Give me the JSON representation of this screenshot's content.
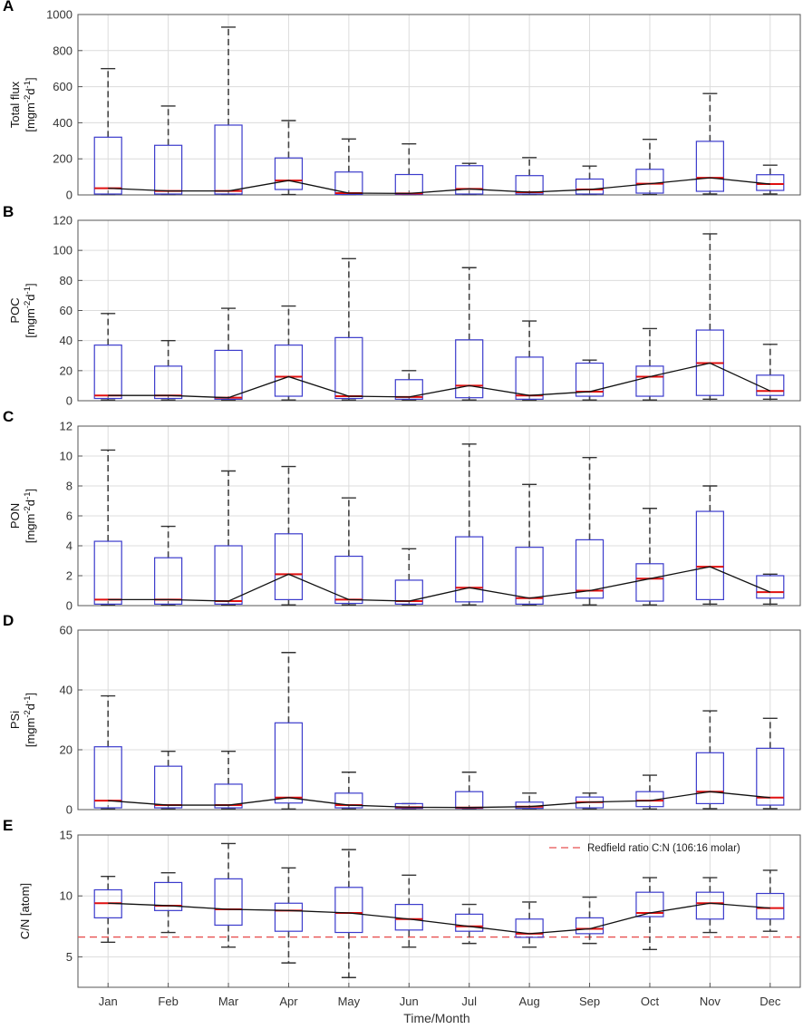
{
  "chart_data": {
    "type": "box",
    "months": [
      "Jan",
      "Feb",
      "Mar",
      "Apr",
      "May",
      "Jun",
      "Jul",
      "Aug",
      "Sep",
      "Oct",
      "Nov",
      "Dec"
    ],
    "xlabel": "Time/Month",
    "panels": [
      {
        "letter": "A",
        "ylabel_main": "Total flux",
        "ylabel_unit": "[mgm",
        "ylabel_sup1": "-2",
        "ylabel_mid": "d",
        "ylabel_sup2": "-1",
        "ylabel_close": "]",
        "ylim": [
          0,
          1000
        ],
        "yticks": [
          0,
          200,
          400,
          600,
          800,
          1000
        ],
        "boxes": [
          {
            "min": 2,
            "q1": 5,
            "median": 37,
            "q3": 320,
            "max": 700
          },
          {
            "min": 2,
            "q1": 5,
            "median": 22,
            "q3": 275,
            "max": 493
          },
          {
            "min": 2,
            "q1": 5,
            "median": 22,
            "q3": 387,
            "max": 930
          },
          {
            "min": 2,
            "q1": 30,
            "median": 80,
            "q3": 205,
            "max": 412
          },
          {
            "min": 2,
            "q1": 3,
            "median": 10,
            "q3": 127,
            "max": 310
          },
          {
            "min": 2,
            "q1": 3,
            "median": 8,
            "q3": 113,
            "max": 283
          },
          {
            "min": 2,
            "q1": 5,
            "median": 33,
            "q3": 162,
            "max": 175
          },
          {
            "min": 2,
            "q1": 5,
            "median": 15,
            "q3": 107,
            "max": 207
          },
          {
            "min": 2,
            "q1": 5,
            "median": 30,
            "q3": 88,
            "max": 160
          },
          {
            "min": 2,
            "q1": 10,
            "median": 62,
            "q3": 142,
            "max": 308
          },
          {
            "min": 5,
            "q1": 20,
            "median": 95,
            "q3": 297,
            "max": 562
          },
          {
            "min": 5,
            "q1": 25,
            "median": 60,
            "q3": 112,
            "max": 165
          }
        ]
      },
      {
        "letter": "B",
        "ylabel_main": "POC",
        "ylabel_unit": "[mgm",
        "ylabel_sup1": "-2",
        "ylabel_mid": "d",
        "ylabel_sup2": "-1",
        "ylabel_close": "]",
        "ylim": [
          0,
          120
        ],
        "yticks": [
          0,
          20,
          40,
          60,
          80,
          100,
          120
        ],
        "boxes": [
          {
            "min": 0.5,
            "q1": 1.5,
            "median": 3.5,
            "q3": 37,
            "max": 58
          },
          {
            "min": 0.5,
            "q1": 1.5,
            "median": 3.5,
            "q3": 23,
            "max": 40
          },
          {
            "min": 0.3,
            "q1": 1,
            "median": 2,
            "q3": 33.5,
            "max": 61.5
          },
          {
            "min": 0.5,
            "q1": 3,
            "median": 16,
            "q3": 37,
            "max": 63
          },
          {
            "min": 0.5,
            "q1": 1.5,
            "median": 3,
            "q3": 42,
            "max": 94.5
          },
          {
            "min": 0.5,
            "q1": 1,
            "median": 2.5,
            "q3": 14,
            "max": 20
          },
          {
            "min": 0.5,
            "q1": 2,
            "median": 10,
            "q3": 40.5,
            "max": 88.5
          },
          {
            "min": 0.3,
            "q1": 1,
            "median": 3.5,
            "q3": 29,
            "max": 53
          },
          {
            "min": 0.5,
            "q1": 3,
            "median": 6,
            "q3": 25,
            "max": 27
          },
          {
            "min": 0.5,
            "q1": 3,
            "median": 16,
            "q3": 23,
            "max": 48
          },
          {
            "min": 1,
            "q1": 3.5,
            "median": 25,
            "q3": 47,
            "max": 111
          },
          {
            "min": 1,
            "q1": 3.5,
            "median": 6.5,
            "q3": 17,
            "max": 37.5
          }
        ]
      },
      {
        "letter": "C",
        "ylabel_main": "PON",
        "ylabel_unit": "[mgm",
        "ylabel_sup1": "-2",
        "ylabel_mid": "d",
        "ylabel_sup2": "-1",
        "ylabel_close": "]",
        "ylim": [
          0,
          12
        ],
        "yticks": [
          0,
          2,
          4,
          6,
          8,
          10,
          12
        ],
        "boxes": [
          {
            "min": 0.05,
            "q1": 0.1,
            "median": 0.4,
            "q3": 4.3,
            "max": 10.4
          },
          {
            "min": 0.05,
            "q1": 0.1,
            "median": 0.4,
            "q3": 3.2,
            "max": 5.3
          },
          {
            "min": 0.05,
            "q1": 0.1,
            "median": 0.3,
            "q3": 4.0,
            "max": 9.0
          },
          {
            "min": 0.05,
            "q1": 0.4,
            "median": 2.1,
            "q3": 4.8,
            "max": 9.3
          },
          {
            "min": 0.05,
            "q1": 0.15,
            "median": 0.4,
            "q3": 3.3,
            "max": 7.2
          },
          {
            "min": 0.05,
            "q1": 0.1,
            "median": 0.3,
            "q3": 1.7,
            "max": 3.8
          },
          {
            "min": 0.05,
            "q1": 0.25,
            "median": 1.2,
            "q3": 4.6,
            "max": 10.8
          },
          {
            "min": 0.05,
            "q1": 0.1,
            "median": 0.5,
            "q3": 3.9,
            "max": 8.1
          },
          {
            "min": 0.05,
            "q1": 0.5,
            "median": 1.0,
            "q3": 4.4,
            "max": 9.9
          },
          {
            "min": 0.05,
            "q1": 0.3,
            "median": 1.8,
            "q3": 2.8,
            "max": 6.5
          },
          {
            "min": 0.1,
            "q1": 0.4,
            "median": 2.6,
            "q3": 6.3,
            "max": 8.0
          },
          {
            "min": 0.1,
            "q1": 0.5,
            "median": 0.9,
            "q3": 2.0,
            "max": 2.1
          }
        ]
      },
      {
        "letter": "D",
        "ylabel_main": "PSi",
        "ylabel_unit": "[mgm",
        "ylabel_sup1": "-2",
        "ylabel_mid": "d",
        "ylabel_sup2": "-1",
        "ylabel_close": "]",
        "ylim": [
          0,
          60
        ],
        "yticks": [
          0,
          20,
          40,
          60
        ],
        "boxes": [
          {
            "min": 0.2,
            "q1": 0.6,
            "median": 3,
            "q3": 21,
            "max": 38
          },
          {
            "min": 0.2,
            "q1": 0.6,
            "median": 1.5,
            "q3": 14.5,
            "max": 19.5
          },
          {
            "min": 0.2,
            "q1": 0.6,
            "median": 1.5,
            "q3": 8.5,
            "max": 19.5
          },
          {
            "min": 0.2,
            "q1": 2.2,
            "median": 4,
            "q3": 29,
            "max": 52.5
          },
          {
            "min": 0.2,
            "q1": 0.6,
            "median": 1.5,
            "q3": 5.5,
            "max": 12.5
          },
          {
            "min": 0.2,
            "q1": 0.4,
            "median": 0.8,
            "q3": 2,
            "max": 2
          },
          {
            "min": 0.2,
            "q1": 0.4,
            "median": 0.7,
            "q3": 6,
            "max": 12.5
          },
          {
            "min": 0.2,
            "q1": 0.4,
            "median": 1,
            "q3": 2.5,
            "max": 5.5
          },
          {
            "min": 0.2,
            "q1": 0.6,
            "median": 2.5,
            "q3": 4.2,
            "max": 5.5
          },
          {
            "min": 0.2,
            "q1": 1,
            "median": 3,
            "q3": 6,
            "max": 11.5
          },
          {
            "min": 0.3,
            "q1": 2,
            "median": 6,
            "q3": 19,
            "max": 33
          },
          {
            "min": 0.3,
            "q1": 1.5,
            "median": 4,
            "q3": 20.5,
            "max": 30.5
          }
        ]
      },
      {
        "letter": "E",
        "ylabel_main": "C/N [atom]",
        "ylim": [
          2.5,
          15
        ],
        "yticks": [
          5,
          10,
          15
        ],
        "reference_line": {
          "value": 6.625,
          "label": "Redfield ratio C:N (106:16 molar)"
        },
        "boxes": [
          {
            "min": 6.2,
            "q1": 8.2,
            "median": 9.4,
            "q3": 10.5,
            "max": 11.6
          },
          {
            "min": 7.0,
            "q1": 8.8,
            "median": 9.2,
            "q3": 11.1,
            "max": 11.9
          },
          {
            "min": 5.8,
            "q1": 7.6,
            "median": 8.9,
            "q3": 11.4,
            "max": 14.3
          },
          {
            "min": 4.5,
            "q1": 7.1,
            "median": 8.8,
            "q3": 9.4,
            "max": 12.3
          },
          {
            "min": 3.3,
            "q1": 7.0,
            "median": 8.6,
            "q3": 10.7,
            "max": 13.8
          },
          {
            "min": 5.8,
            "q1": 7.2,
            "median": 8.1,
            "q3": 9.3,
            "max": 11.7
          },
          {
            "min": 6.1,
            "q1": 7.1,
            "median": 7.5,
            "q3": 8.5,
            "max": 9.3
          },
          {
            "min": 5.8,
            "q1": 6.6,
            "median": 6.9,
            "q3": 8.1,
            "max": 9.5
          },
          {
            "min": 6.1,
            "q1": 6.9,
            "median": 7.3,
            "q3": 8.2,
            "max": 9.9
          },
          {
            "min": 5.6,
            "q1": 8.3,
            "median": 8.6,
            "q3": 10.3,
            "max": 11.5
          },
          {
            "min": 7.0,
            "q1": 8.1,
            "median": 9.4,
            "q3": 10.3,
            "max": 11.5
          },
          {
            "min": 7.1,
            "q1": 8.1,
            "median": 9.0,
            "q3": 10.2,
            "max": 12.1
          }
        ]
      }
    ]
  }
}
